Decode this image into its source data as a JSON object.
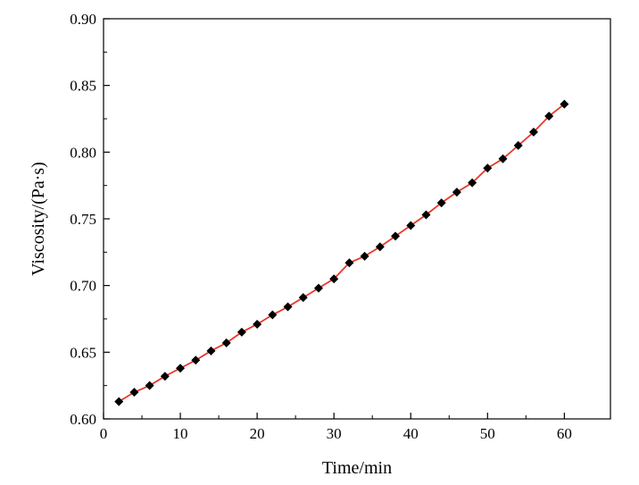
{
  "chart_data": {
    "type": "line",
    "xlabel": "Time/min",
    "ylabel": "Viscosity/(Pa·s)",
    "xlim": [
      0,
      66
    ],
    "ylim": [
      0.6,
      0.9
    ],
    "xticks": [
      0,
      10,
      20,
      30,
      40,
      50,
      60
    ],
    "yticks": [
      0.6,
      0.65,
      0.7,
      0.75,
      0.8,
      0.85,
      0.9
    ],
    "xtick_labels": [
      "0",
      "10",
      "20",
      "30",
      "40",
      "50",
      "60"
    ],
    "ytick_labels": [
      "0.60",
      "0.65",
      "0.70",
      "0.75",
      "0.80",
      "0.85",
      "0.90"
    ],
    "grid": false,
    "line_color": "#e8392b",
    "marker_color": "#000000",
    "marker": "diamond",
    "series": [
      {
        "x": [
          2,
          4,
          6,
          8,
          10,
          12,
          14,
          16,
          18,
          20,
          22,
          24,
          26,
          28,
          30,
          32,
          34,
          36,
          38,
          40,
          42,
          44,
          46,
          48,
          50,
          52,
          54,
          56,
          58,
          60
        ],
        "y": [
          0.613,
          0.62,
          0.625,
          0.632,
          0.638,
          0.644,
          0.651,
          0.657,
          0.665,
          0.671,
          0.678,
          0.684,
          0.691,
          0.698,
          0.705,
          0.717,
          0.722,
          0.729,
          0.737,
          0.745,
          0.753,
          0.762,
          0.77,
          0.777,
          0.788,
          0.795,
          0.805,
          0.815,
          0.827,
          0.836
        ]
      }
    ]
  }
}
